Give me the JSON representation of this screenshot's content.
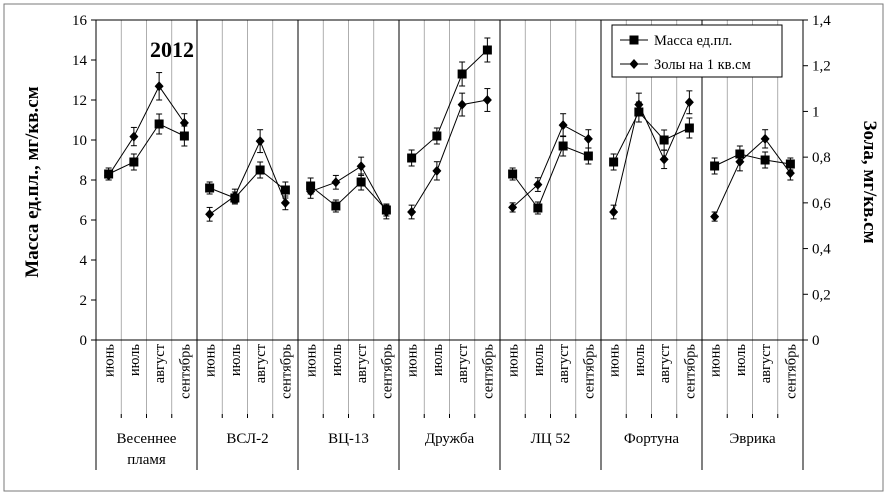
{
  "chart_data": {
    "type": "line",
    "title": "2012",
    "ylabel_left": "Масса ед.пл., мг/кв.см",
    "ylabel_right": "Зола, мг/кв.см",
    "ylim_left": [
      0,
      16
    ],
    "yticks_left": [
      "0",
      "2",
      "4",
      "6",
      "8",
      "10",
      "12",
      "14",
      "16"
    ],
    "ylim_right": [
      0,
      1.4
    ],
    "yticks_right": [
      "0",
      "0,2",
      "0,4",
      "0,6",
      "0,8",
      "1",
      "1,2",
      "1,4"
    ],
    "legend_position": "top-right",
    "grid": "vertical",
    "months": [
      "июнь",
      "июль",
      "август",
      "сентябрь"
    ],
    "groups": [
      {
        "name_lines": [
          "Весеннее",
          "пламя"
        ]
      },
      {
        "name_lines": [
          "ВСЛ-2"
        ]
      },
      {
        "name_lines": [
          "ВЦ-13"
        ]
      },
      {
        "name_lines": [
          "Дружба"
        ]
      },
      {
        "name_lines": [
          "ЛЦ 52"
        ]
      },
      {
        "name_lines": [
          "Фортуна"
        ]
      },
      {
        "name_lines": [
          "Эврика"
        ]
      }
    ],
    "series": [
      {
        "name": "Масса ед.пл.",
        "axis": "left",
        "marker": "square",
        "values": [
          [
            8.3,
            8.9,
            10.8,
            10.2
          ],
          [
            7.6,
            7.1,
            8.5,
            7.5
          ],
          [
            7.7,
            6.7,
            7.9,
            6.5
          ],
          [
            9.1,
            10.2,
            13.3,
            14.5
          ],
          [
            8.3,
            6.6,
            9.7,
            9.2
          ],
          [
            8.9,
            11.4,
            10.0,
            10.6
          ],
          [
            8.7,
            9.3,
            9.0,
            8.8
          ]
        ],
        "errors": [
          [
            0.3,
            0.4,
            0.5,
            0.5
          ],
          [
            0.3,
            0.3,
            0.4,
            0.4
          ],
          [
            0.4,
            0.3,
            0.4,
            0.3
          ],
          [
            0.4,
            0.4,
            0.6,
            0.6
          ],
          [
            0.3,
            0.3,
            0.5,
            0.4
          ],
          [
            0.4,
            0.5,
            0.5,
            0.5
          ],
          [
            0.4,
            0.4,
            0.4,
            0.3
          ]
        ]
      },
      {
        "name": "Золы на 1 кв.см",
        "axis": "right",
        "marker": "diamond",
        "values": [
          [
            0.72,
            0.89,
            1.11,
            0.95
          ],
          [
            0.55,
            0.63,
            0.87,
            0.6
          ],
          [
            0.65,
            0.69,
            0.76,
            0.56
          ],
          [
            0.56,
            0.74,
            1.03,
            1.05
          ],
          [
            0.58,
            0.68,
            0.94,
            0.88
          ],
          [
            0.56,
            1.03,
            0.79,
            1.04
          ],
          [
            0.54,
            0.78,
            0.88,
            0.73
          ]
        ],
        "errors": [
          [
            0.02,
            0.04,
            0.06,
            0.04
          ],
          [
            0.03,
            0.03,
            0.05,
            0.03
          ],
          [
            0.03,
            0.03,
            0.04,
            0.03
          ],
          [
            0.03,
            0.04,
            0.05,
            0.05
          ],
          [
            0.02,
            0.03,
            0.05,
            0.04
          ],
          [
            0.03,
            0.05,
            0.04,
            0.05
          ],
          [
            0.02,
            0.04,
            0.04,
            0.03
          ]
        ]
      }
    ]
  }
}
